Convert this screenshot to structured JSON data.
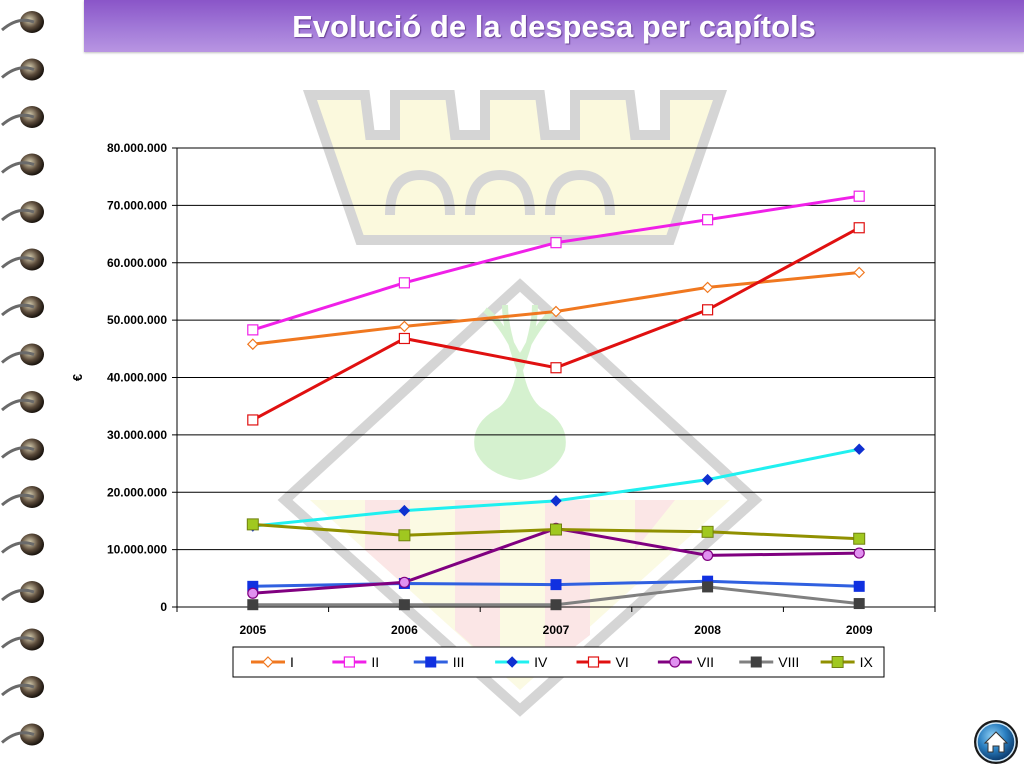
{
  "page": {
    "title": "Evolució de la despesa per capítols",
    "home_icon": "home-icon"
  },
  "chart_data": {
    "type": "line",
    "title": "",
    "xlabel": "",
    "ylabel": "€",
    "ylim": [
      0,
      80000000
    ],
    "yticks": [
      0,
      10000000,
      20000000,
      30000000,
      40000000,
      50000000,
      60000000,
      70000000,
      80000000
    ],
    "ytick_labels": [
      "0",
      "10.000.000",
      "20.000.000",
      "30.000.000",
      "40.000.000",
      "50.000.000",
      "60.000.000",
      "70.000.000",
      "80.000.000"
    ],
    "categories": [
      "2005",
      "2006",
      "2007",
      "2008",
      "2009"
    ],
    "grid": true,
    "legend_position": "bottom",
    "series": [
      {
        "name": "I",
        "color": "#f07820",
        "marker": "diamond-open",
        "values": [
          45800000,
          48900000,
          51500000,
          55700000,
          58300000
        ]
      },
      {
        "name": "II",
        "color": "#f020e8",
        "marker": "square-open",
        "values": [
          48300000,
          56500000,
          63500000,
          67500000,
          71600000
        ]
      },
      {
        "name": "III",
        "color": "#3060e0",
        "marker": "square-filled-blue",
        "values": [
          3600000,
          4100000,
          3900000,
          4500000,
          3600000
        ]
      },
      {
        "name": "IV",
        "color": "#20f0f0",
        "marker": "diamond-filled-blue",
        "values": [
          14100000,
          16800000,
          18500000,
          22200000,
          27500000
        ]
      },
      {
        "name": "VI",
        "color": "#e01010",
        "marker": "square-open",
        "values": [
          32600000,
          46800000,
          41700000,
          51800000,
          66100000
        ]
      },
      {
        "name": "VII",
        "color": "#800080",
        "marker": "circle-filled-pink",
        "values": [
          2400000,
          4300000,
          13700000,
          9000000,
          9400000
        ]
      },
      {
        "name": "VIII",
        "color": "#808080",
        "marker": "square-filled-dark",
        "values": [
          400000,
          400000,
          400000,
          3500000,
          600000
        ]
      },
      {
        "name": "IX",
        "color": "#909000",
        "marker": "square-filled-green",
        "values": [
          14400000,
          12500000,
          13500000,
          13100000,
          11900000
        ]
      }
    ]
  }
}
